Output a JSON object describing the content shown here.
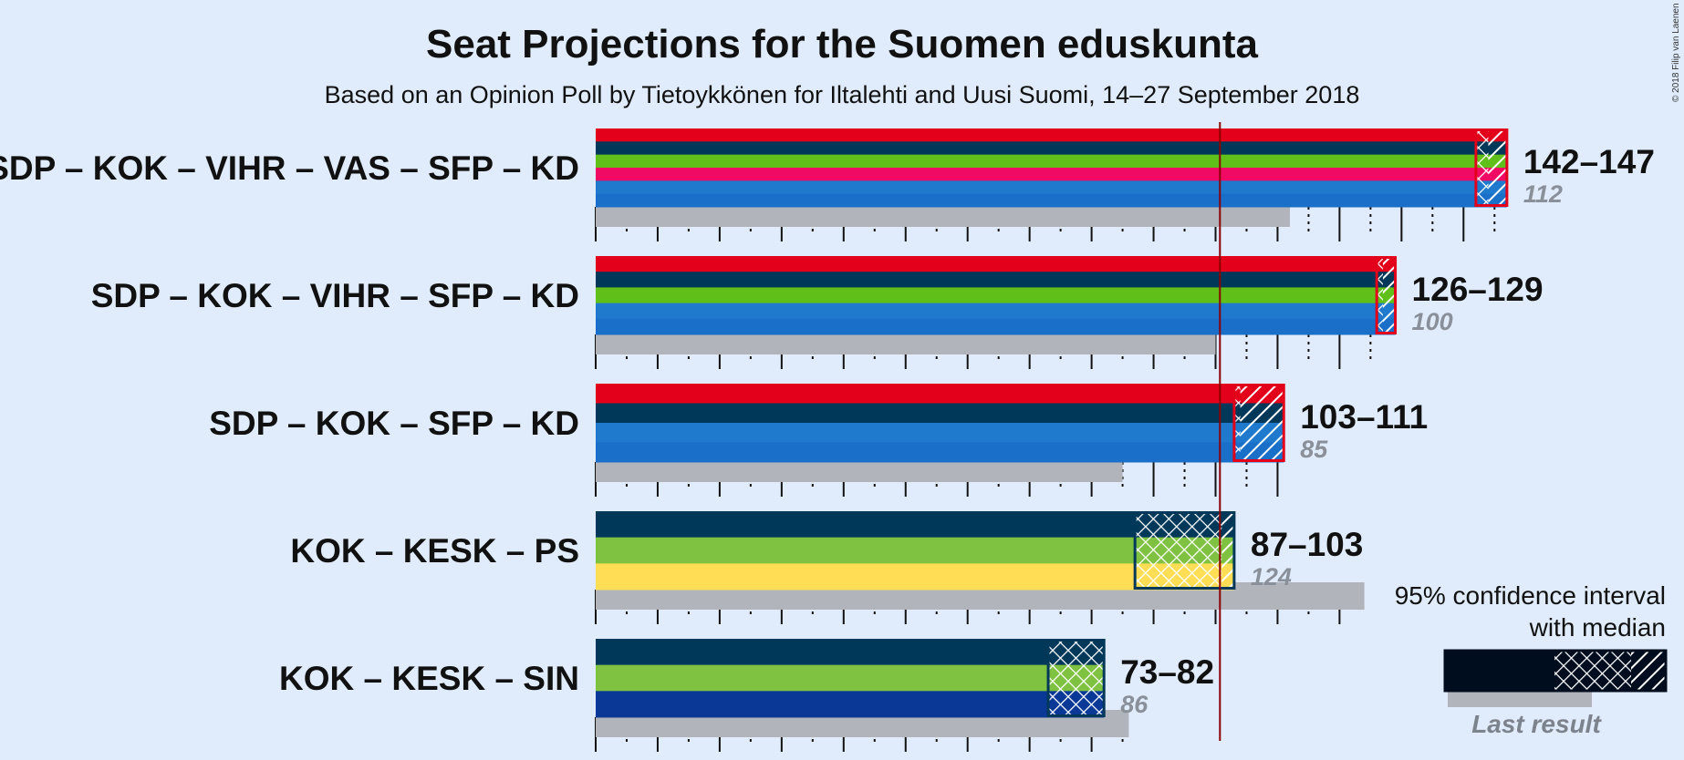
{
  "title": "Seat Projections for the Suomen eduskunta",
  "subtitle": "Based on an Opinion Poll by Tietoykkönen for Iltalehti and Uusi Suomi, 14–27 September 2018",
  "copyright": "© 2018 Filip van Laenen",
  "colors": {
    "background": "#e0ecfb",
    "last_result": "#b1b5bb",
    "majority_line": "#8b0000",
    "SDP": "#e2001a",
    "KOK": "#003859",
    "VIHR": "#61bf1a",
    "VAS": "#f00a64",
    "SFP": "#1f7ace",
    "KD": "#1a6fc8",
    "KESK": "#7fc242",
    "PS": "#ffde55",
    "SIN": "#0a3896"
  },
  "legend": {
    "line1": "95% confidence interval",
    "line2": "with median",
    "last_result": "Last result"
  },
  "chart_data": {
    "type": "bar",
    "title": "Seat Projections for the Suomen eduskunta",
    "subtitle": "Based on an Opinion Poll by Tietoykkönen for Iltalehti and Uusi Suomi, 14–27 September 2018",
    "xlim": [
      0,
      200
    ],
    "majority": 101,
    "categories": [
      "SDP – KOK – VIHR – VAS – SFP – KD",
      "SDP – KOK – VIHR – SFP – KD",
      "SDP – KOK – SFP – KD",
      "KOK – KESK – PS",
      "KOK – KESK – SIN"
    ],
    "coalitions": [
      {
        "label": "SDP – KOK – VIHR – VAS – SFP – KD",
        "parties": [
          "SDP",
          "KOK",
          "VIHR",
          "VAS",
          "SFP",
          "KD"
        ],
        "low": 142,
        "median": 144,
        "high": 147,
        "range_label": "142–147",
        "last_result": 112,
        "last_label": "112"
      },
      {
        "label": "SDP – KOK – VIHR – SFP – KD",
        "parties": [
          "SDP",
          "KOK",
          "VIHR",
          "SFP",
          "KD"
        ],
        "low": 126,
        "median": 127,
        "high": 129,
        "range_label": "126–129",
        "last_result": 100,
        "last_label": "100"
      },
      {
        "label": "SDP – KOK – SFP – KD",
        "parties": [
          "SDP",
          "KOK",
          "SFP",
          "KD"
        ],
        "low": 103,
        "median": 104,
        "high": 111,
        "range_label": "103–111",
        "last_result": 85,
        "last_label": "85"
      },
      {
        "label": "KOK – KESK – PS",
        "parties": [
          "KOK",
          "KESK",
          "PS"
        ],
        "low": 87,
        "median": 101,
        "high": 103,
        "range_label": "87–103",
        "last_result": 124,
        "last_label": "124"
      },
      {
        "label": "KOK – KESK – SIN",
        "parties": [
          "KOK",
          "KESK",
          "SIN"
        ],
        "low": 73,
        "median": 82,
        "high": 82,
        "range_label": "73–82",
        "last_result": 86,
        "last_label": "86"
      }
    ]
  }
}
